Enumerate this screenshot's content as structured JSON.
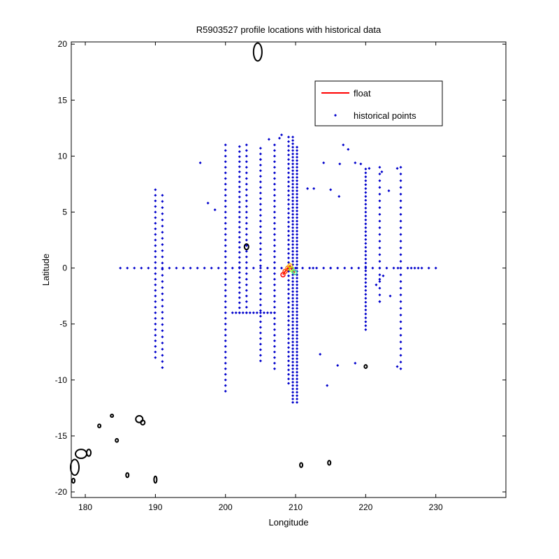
{
  "chart_data": {
    "type": "scatter",
    "title": "R5903527 profile locations with historical data",
    "xlabel": "Longitude",
    "ylabel": "Latitude",
    "xlim": [
      178,
      240
    ],
    "ylim": [
      -20.5,
      20.2
    ],
    "xticks": [
      180,
      190,
      200,
      210,
      220,
      230
    ],
    "yticks": [
      -20,
      -15,
      -10,
      -5,
      0,
      5,
      10,
      15,
      20
    ],
    "grid": false,
    "legend": {
      "placement": "top-right",
      "entries": [
        {
          "label": "float",
          "marker": "line",
          "color": "#ff0000"
        },
        {
          "label": "historical points",
          "marker": "dot",
          "color": "#0000cc"
        }
      ]
    },
    "colors": {
      "historical": "#0000cc",
      "coast": "#000000",
      "float": "#ff0000"
    },
    "series": [
      {
        "name": "historical points",
        "color": "#0000cc",
        "columns": [
          {
            "x": 190,
            "y": [
              -8,
              7
            ],
            "step": 0.5
          },
          {
            "x": 191,
            "y": [
              -8.9,
              6.9
            ],
            "step": 0.55
          },
          {
            "x": 200,
            "y": [
              -11,
              11
            ],
            "step": 0.5
          },
          {
            "x": 202,
            "y": [
              -4,
              11
            ],
            "step": 0.45
          },
          {
            "x": 203,
            "y": [
              -4,
              11
            ],
            "step": 0.5
          },
          {
            "x": 205,
            "y": [
              -8.3,
              11
            ],
            "step": 0.5
          },
          {
            "x": 207,
            "y": [
              -9,
              11
            ],
            "step": 0.5
          },
          {
            "x": 209,
            "y": [
              -10.3,
              11.7
            ],
            "step": 0.4
          },
          {
            "x": 209.6,
            "y": [
              -12,
              11.9
            ],
            "step": 0.3
          },
          {
            "x": 210.2,
            "y": [
              -12,
              11
            ],
            "step": 0.3
          },
          {
            "x": 220,
            "y": [
              -5.5,
              9
            ],
            "step": 0.35
          },
          {
            "x": 222,
            "y": [
              -3,
              9
            ],
            "step": 0.6
          },
          {
            "x": 225,
            "y": [
              -9,
              9
            ],
            "step": 0.6
          }
        ],
        "rows": [
          {
            "y": 0,
            "x": [
              185,
              230
            ],
            "step": 1
          },
          {
            "y": -4,
            "x": [
              201,
              207
            ],
            "step": 0.5
          }
        ],
        "points": [
          [
            196.4,
            9.4
          ],
          [
            197.5,
            5.8
          ],
          [
            198.5,
            5.2
          ],
          [
            212.6,
            7.1
          ],
          [
            214,
            9.4
          ],
          [
            215,
            7
          ],
          [
            216.3,
            9.3
          ],
          [
            216.8,
            11
          ],
          [
            217.5,
            10.6
          ],
          [
            218.5,
            9.4
          ],
          [
            219.3,
            9.3
          ],
          [
            220.5,
            8.9
          ],
          [
            222.3,
            8.6
          ],
          [
            223.3,
            6.9
          ],
          [
            224.5,
            8.9
          ],
          [
            216.2,
            6.4
          ],
          [
            212.5,
            0
          ],
          [
            215,
            0
          ],
          [
            218.5,
            -8.5
          ],
          [
            221.5,
            -1.5
          ],
          [
            222,
            -3
          ],
          [
            222,
            -1
          ],
          [
            224.6,
            0
          ],
          [
            226.5,
            0
          ],
          [
            227.5,
            0
          ],
          [
            222.5,
            -0.7
          ],
          [
            223.5,
            -2.5
          ],
          [
            213.5,
            -7.7
          ],
          [
            214.5,
            -10.5
          ],
          [
            205,
            9.7
          ],
          [
            206.2,
            11.5
          ],
          [
            211.7,
            7.1
          ],
          [
            208,
            11.9
          ],
          [
            207.7,
            11.6
          ],
          [
            216,
            -8.7
          ],
          [
            224.5,
            -8.8
          ]
        ]
      },
      {
        "name": "float",
        "color": "#ff0000",
        "points": [
          [
            208.2,
            -0.6
          ],
          [
            208.5,
            -0.3
          ],
          [
            208.9,
            0
          ],
          [
            209.2,
            0.2
          ],
          [
            209.4,
            -0.1
          ],
          [
            209.7,
            -0.3
          ],
          [
            209.9,
            -0.4
          ]
        ]
      }
    ],
    "coastline": [
      {
        "center": [
          204.6,
          19.3
        ],
        "rx": 0.6,
        "ry": 0.8
      },
      {
        "center": [
          203,
          1.9
        ],
        "rx": 0.3,
        "ry": 0.25
      },
      {
        "center": [
          220,
          -8.8
        ],
        "rx": 0.2,
        "ry": 0.15
      },
      {
        "center": [
          178.5,
          -17.8
        ],
        "rx": 0.6,
        "ry": 0.7
      },
      {
        "center": [
          179.4,
          -16.6
        ],
        "rx": 0.8,
        "ry": 0.4
      },
      {
        "center": [
          178.3,
          -19
        ],
        "rx": 0.2,
        "ry": 0.2
      },
      {
        "center": [
          180.5,
          -16.5
        ],
        "rx": 0.3,
        "ry": 0.3
      },
      {
        "center": [
          182,
          -14.1
        ],
        "rx": 0.2,
        "ry": 0.15
      },
      {
        "center": [
          183.8,
          -13.2
        ],
        "rx": 0.15,
        "ry": 0.12
      },
      {
        "center": [
          184.5,
          -15.4
        ],
        "rx": 0.15,
        "ry": 0.15
      },
      {
        "center": [
          186,
          -18.5
        ],
        "rx": 0.2,
        "ry": 0.2
      },
      {
        "center": [
          187.7,
          -13.5
        ],
        "rx": 0.5,
        "ry": 0.3
      },
      {
        "center": [
          188.2,
          -13.8
        ],
        "rx": 0.3,
        "ry": 0.2
      },
      {
        "center": [
          190,
          -18.9
        ],
        "rx": 0.2,
        "ry": 0.3
      },
      {
        "center": [
          210.8,
          -17.6
        ],
        "rx": 0.2,
        "ry": 0.2
      },
      {
        "center": [
          214.8,
          -17.4
        ],
        "rx": 0.2,
        "ry": 0.2
      }
    ]
  }
}
